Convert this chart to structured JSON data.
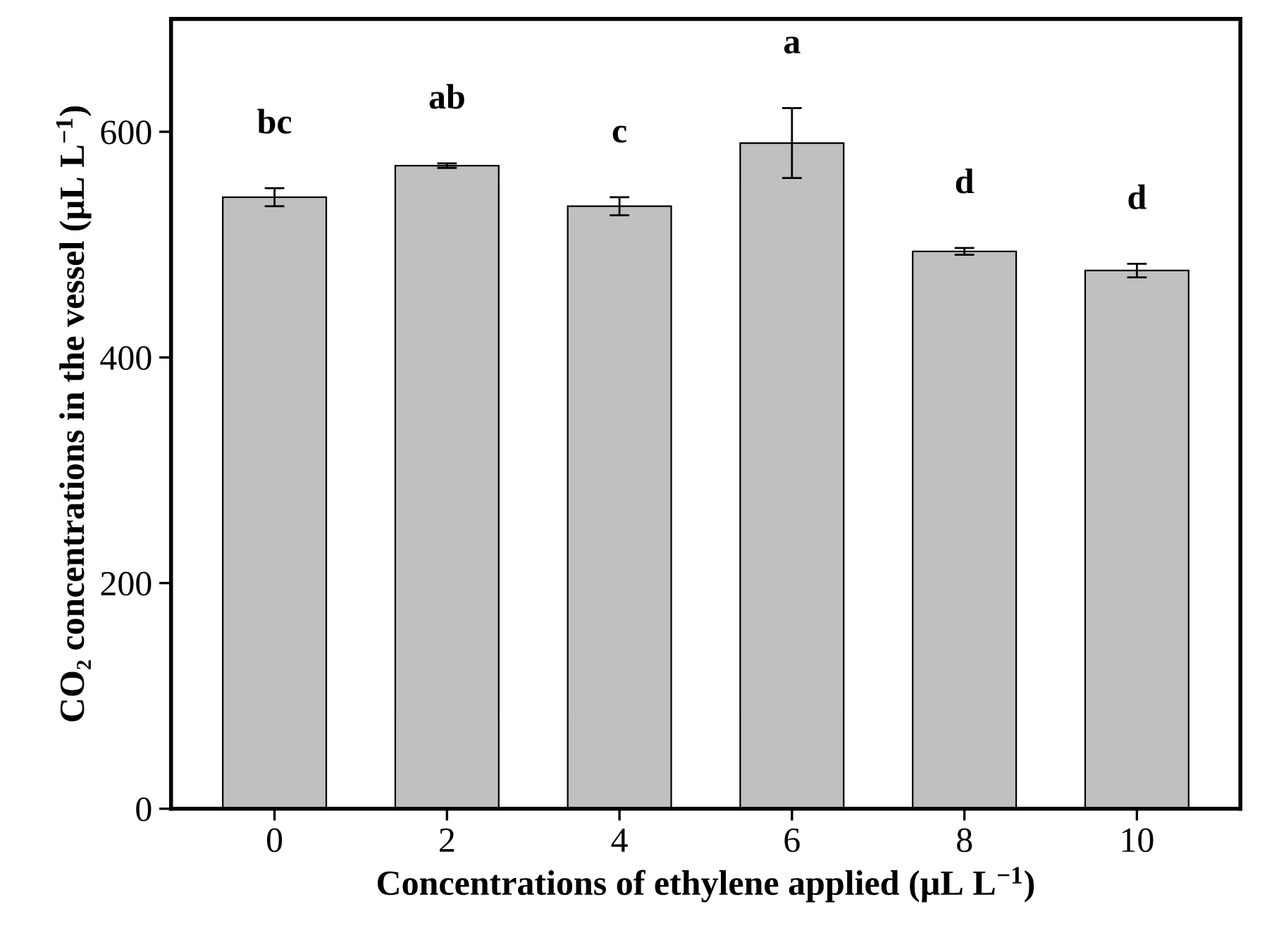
{
  "chart_data": {
    "type": "bar",
    "xlabel": "Concentrations of ethylene applied (µL L$^{−1}$)",
    "ylabel": "CO₂ concentrations in the vessel (µL L$^{−1}$)",
    "categories": [
      "0",
      "2",
      "4",
      "6",
      "8",
      "10"
    ],
    "values": [
      542,
      570,
      534,
      590,
      494,
      477
    ],
    "errors": [
      8,
      2,
      8,
      31,
      3,
      6
    ],
    "color": "#c0c0c0",
    "ylim": [
      0,
      700
    ],
    "yticks": [
      0,
      200,
      400,
      600
    ],
    "grid": false,
    "annotations": [
      "bc",
      "ab",
      "c",
      "a",
      "d",
      "d"
    ]
  }
}
